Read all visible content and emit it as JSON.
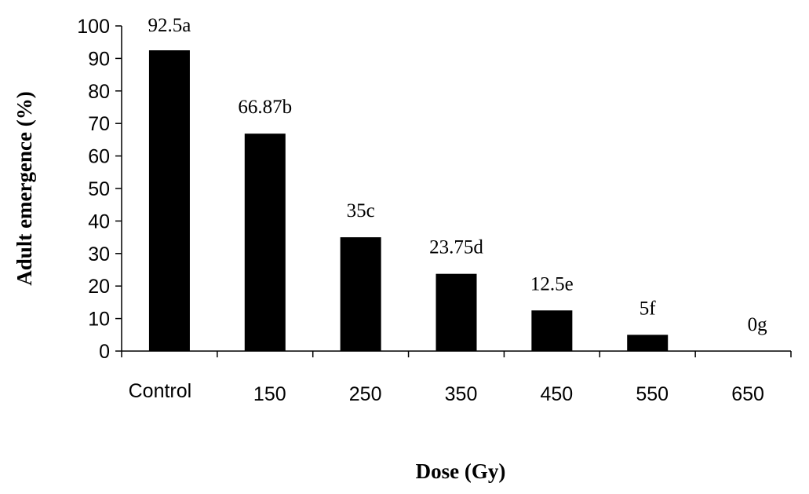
{
  "chart_data": {
    "type": "bar",
    "title": "",
    "xlabel": "Dose (Gy)",
    "ylabel": "Adult emergence (%)",
    "categories": [
      "Control",
      "150",
      "250",
      "350",
      "450",
      "550",
      "650"
    ],
    "values": [
      92.5,
      66.87,
      35,
      23.75,
      12.5,
      5,
      0
    ],
    "data_labels": [
      "92.5a",
      "66.87b",
      "35c",
      "23.75d",
      "12.5e",
      "5f",
      "0g"
    ],
    "ylim": [
      0,
      100
    ],
    "yticks": [
      0,
      10,
      20,
      30,
      40,
      50,
      60,
      70,
      80,
      90,
      100
    ],
    "grid": false,
    "legend": "none",
    "bar_color": "#000000"
  }
}
